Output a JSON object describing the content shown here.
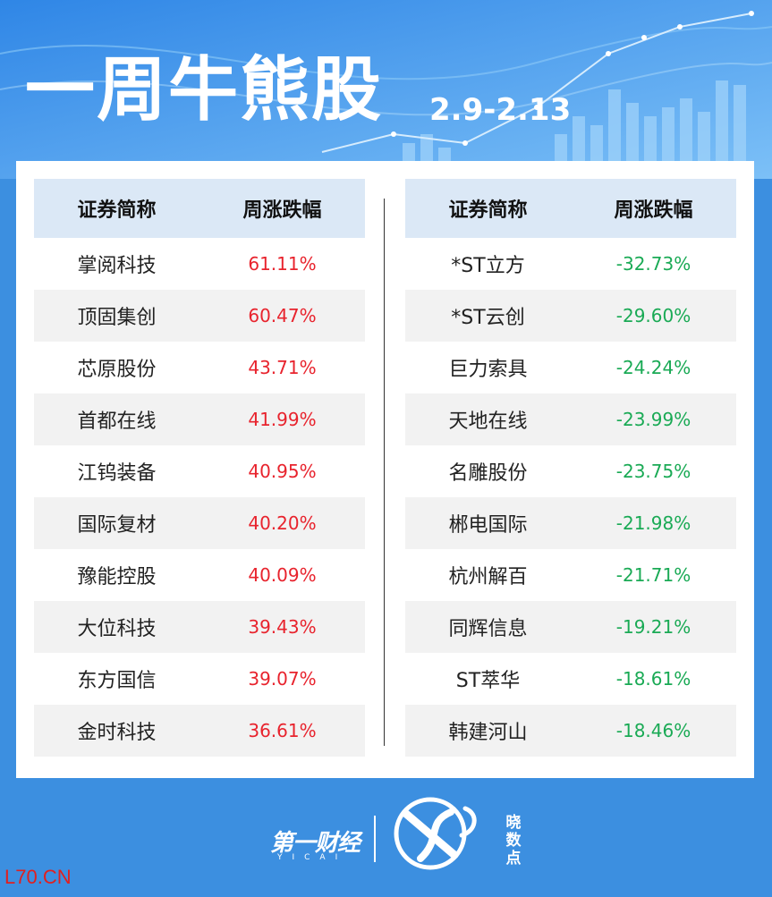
{
  "header": {
    "title": "一周牛熊股",
    "date_range": "2.9-2.13"
  },
  "left_table": {
    "col_name": "证券简称",
    "col_change": "周涨跌幅",
    "rows": [
      {
        "name": "掌阅科技",
        "change": "61.11%"
      },
      {
        "name": "顶固集创",
        "change": "60.47%"
      },
      {
        "name": "芯原股份",
        "change": "43.71%"
      },
      {
        "name": "首都在线",
        "change": "41.99%"
      },
      {
        "name": "江钨装备",
        "change": "40.95%"
      },
      {
        "name": "国际复材",
        "change": "40.20%"
      },
      {
        "name": "豫能控股",
        "change": "40.09%"
      },
      {
        "name": "大位科技",
        "change": "39.43%"
      },
      {
        "name": "东方国信",
        "change": "39.07%"
      },
      {
        "name": "金时科技",
        "change": "36.61%"
      }
    ]
  },
  "right_table": {
    "col_name": "证券简称",
    "col_change": "周涨跌幅",
    "rows": [
      {
        "name": "*ST立方",
        "change": "-32.73%"
      },
      {
        "name": "*ST云创",
        "change": "-29.60%"
      },
      {
        "name": "巨力索具",
        "change": "-24.24%"
      },
      {
        "name": "天地在线",
        "change": "-23.99%"
      },
      {
        "name": "名雕股份",
        "change": "-23.75%"
      },
      {
        "name": "郴电国际",
        "change": "-21.98%"
      },
      {
        "name": "杭州解百",
        "change": "-21.71%"
      },
      {
        "name": "同辉信息",
        "change": "-19.21%"
      },
      {
        "name": "ST萃华",
        "change": "-18.61%"
      },
      {
        "name": "韩建河山",
        "change": "-18.46%"
      }
    ]
  },
  "footer": {
    "brand": "第一财经",
    "brand_sub": "YICAI",
    "badge_text": "晓数点"
  },
  "watermark": "L70.CN",
  "colors": {
    "background": "#3c8fe0",
    "up": "#e8232d",
    "down": "#1aaa55",
    "header_row": "#dbe8f6",
    "stripe": "#f2f2f2"
  }
}
